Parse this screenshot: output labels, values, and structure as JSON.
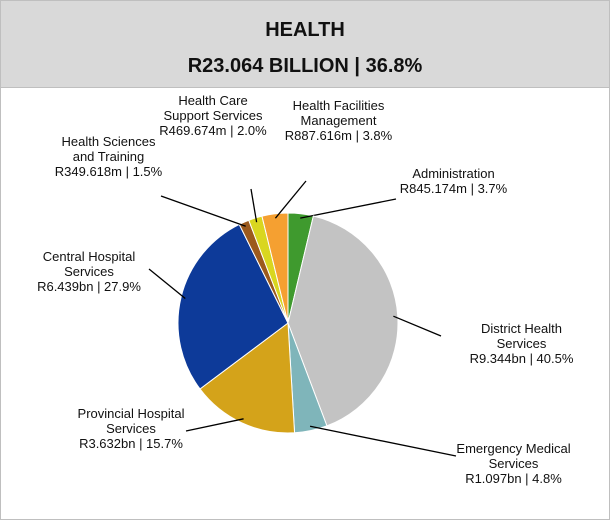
{
  "chart_data": {
    "type": "pie",
    "title": "HEALTH",
    "subtitle": "R23.064 BILLION | 36.8%",
    "categories": [
      "Administration",
      "District Health Services",
      "Emergency Medical Services",
      "Provincial Hospital Services",
      "Central Hospital Services",
      "Health Sciences and Training",
      "Health Care Support Services",
      "Health Facilities Management"
    ],
    "values": [
      3.7,
      40.5,
      4.8,
      15.7,
      27.9,
      1.5,
      2.0,
      3.8
    ],
    "value_labels": [
      "R845.174m | 3.7%",
      "R9.344bn | 40.5%",
      "R1.097bn | 4.8%",
      "R3.632bn | 15.7%",
      "R6.439bn | 27.9%",
      "R349.618m | 1.5%",
      "R469.674m | 2.0%",
      "R887.616m | 3.8%"
    ],
    "colors": [
      "#3f9a2e",
      "#c3c3c3",
      "#7fb5ba",
      "#d4a31a",
      "#0d3a99",
      "#9c5a1c",
      "#d9d61f",
      "#f5a031"
    ]
  }
}
